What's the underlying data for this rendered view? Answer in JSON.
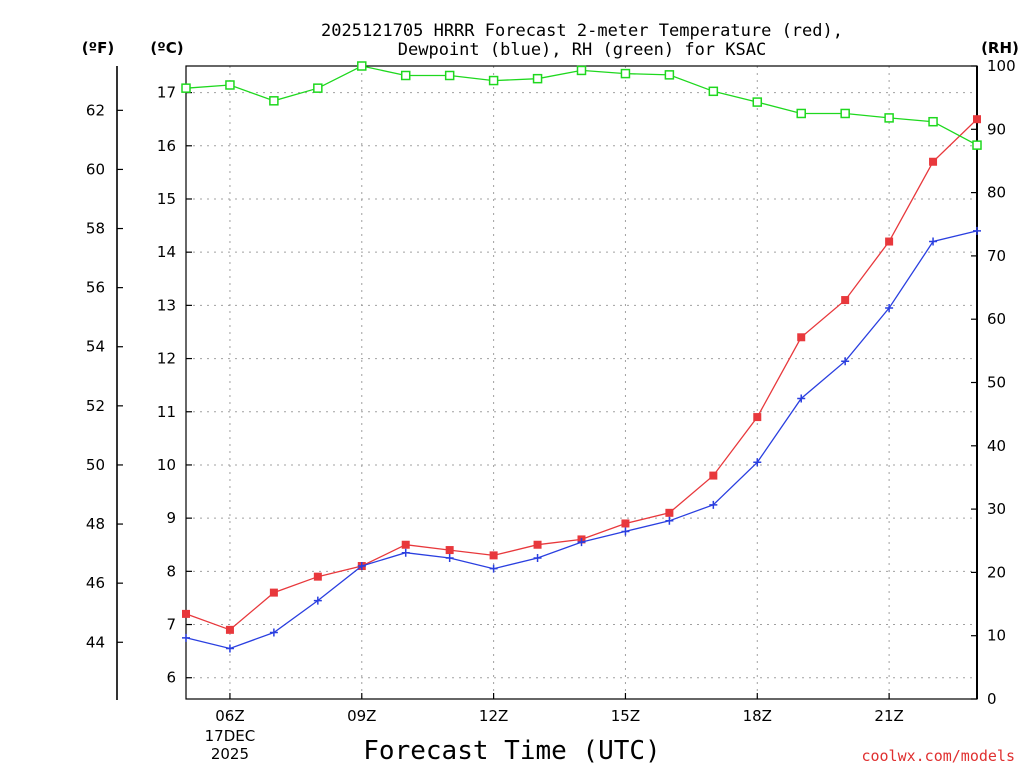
{
  "title_lines": [
    "2025121705 HRRR Forecast 2-meter Temperature (red),",
    "Dewpoint (blue), RH (green) for KSAC"
  ],
  "units": {
    "fahrenheit": "(ºF)",
    "celsius": "(ºC)",
    "rh": "(RH)"
  },
  "credit": "coolwx.com/models",
  "colors": {
    "temperature": "#e8383c",
    "dewpoint": "#2a3fe0",
    "rh": "#1ed81e",
    "credit": "#e03030",
    "grid": "#a0a0a0"
  },
  "chart_data": {
    "type": "line",
    "title": "2025121705 HRRR Forecast 2-meter Temperature (red), Dewpoint (blue), RH (green) for KSAC",
    "xlabel": "Forecast Time (UTC)",
    "x_hours": [
      5,
      6,
      7,
      8,
      9,
      10,
      11,
      12,
      13,
      14,
      15,
      16,
      17,
      18,
      19,
      20,
      21,
      22,
      23
    ],
    "xlim": [
      5,
      23
    ],
    "x_ticks": [
      {
        "hour": 6,
        "label": "06Z",
        "sub": [
          "17DEC",
          "2025"
        ]
      },
      {
        "hour": 9,
        "label": "09Z"
      },
      {
        "hour": 12,
        "label": "12Z"
      },
      {
        "hour": 15,
        "label": "15Z"
      },
      {
        "hour": 18,
        "label": "18Z"
      },
      {
        "hour": 21,
        "label": "21Z"
      }
    ],
    "celsius_axis": {
      "ylim": [
        5.6,
        17.5
      ],
      "ticks": [
        6,
        7,
        8,
        9,
        10,
        11,
        12,
        13,
        14,
        15,
        16,
        17
      ]
    },
    "fahrenheit_axis": {
      "ticks": [
        44,
        46,
        48,
        50,
        52,
        54,
        56,
        58,
        60,
        62
      ]
    },
    "rh_axis": {
      "ylim": [
        0,
        100
      ],
      "ticks": [
        0,
        10,
        20,
        30,
        40,
        50,
        60,
        70,
        80,
        90,
        100
      ]
    },
    "series": [
      {
        "name": "Temperature",
        "unit": "C",
        "marker": "square-filled",
        "values": [
          7.2,
          6.9,
          7.6,
          7.9,
          8.1,
          8.5,
          8.4,
          8.3,
          8.5,
          8.6,
          8.9,
          9.1,
          9.8,
          10.9,
          12.4,
          13.1,
          14.2,
          15.7,
          16.5
        ]
      },
      {
        "name": "Dewpoint",
        "unit": "C",
        "marker": "plus",
        "values": [
          6.75,
          6.55,
          6.85,
          7.45,
          8.1,
          8.35,
          8.25,
          8.05,
          8.25,
          8.55,
          8.75,
          8.95,
          9.25,
          10.05,
          11.25,
          11.95,
          12.95,
          14.2,
          14.4
        ]
      },
      {
        "name": "RH",
        "unit": "%",
        "marker": "square-open",
        "values": [
          96.5,
          97,
          94.5,
          96.5,
          100,
          98.5,
          98.5,
          97.7,
          98,
          99.3,
          98.8,
          98.6,
          96,
          94.3,
          92.5,
          92.5,
          91.8,
          91.2,
          87.5
        ]
      }
    ]
  }
}
